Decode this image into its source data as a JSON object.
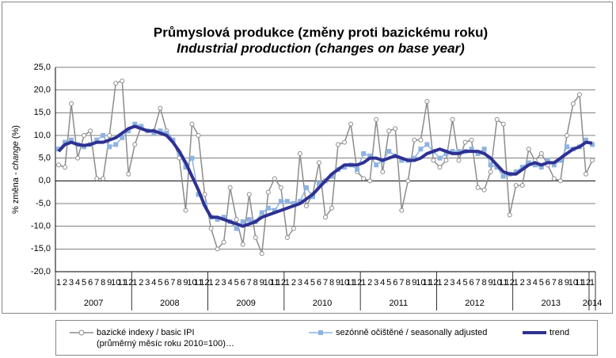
{
  "chart_data": {
    "type": "line",
    "title": "Průmyslová produkce (změny proti bazickému roku)",
    "subtitle": "Industrial production  (changes on base year)",
    "y_label": [
      "% změna - ",
      "change",
      " (%)"
    ],
    "categories": [
      "1",
      "2",
      "3",
      "4",
      "5",
      "6",
      "7",
      "8",
      "9",
      "10",
      "11",
      "12",
      "1",
      "2",
      "3",
      "4",
      "5",
      "6",
      "7",
      "8",
      "9",
      "10",
      "11",
      "12",
      "1",
      "2",
      "3",
      "4",
      "5",
      "6",
      "7",
      "8",
      "9",
      "10",
      "11",
      "12",
      "1",
      "2",
      "3",
      "4",
      "5",
      "6",
      "7",
      "8",
      "9",
      "10",
      "11",
      "12",
      "1",
      "2",
      "3",
      "4",
      "5",
      "6",
      "7",
      "8",
      "9",
      "10",
      "11",
      "12",
      "1",
      "2",
      "3",
      "4",
      "5",
      "6",
      "7",
      "8",
      "9",
      "10",
      "11",
      "12",
      "1",
      "2",
      "3",
      "4",
      "5",
      "6",
      "7",
      "8",
      "9",
      "10",
      "11",
      "12",
      "1"
    ],
    "years": [
      "2007",
      "2008",
      "2009",
      "2010",
      "2011",
      "2012",
      "2013",
      "2014"
    ],
    "ylim": [
      -20,
      25
    ],
    "yticks": [
      {
        "value": -20,
        "label": "-20,0"
      },
      {
        "value": -15,
        "label": "-15,0"
      },
      {
        "value": -10,
        "label": "-10,0"
      },
      {
        "value": -5,
        "label": "-5,0"
      },
      {
        "value": 0,
        "label": "0,0"
      },
      {
        "value": 5,
        "label": "5,0"
      },
      {
        "value": 10,
        "label": "10,0"
      },
      {
        "value": 15,
        "label": "15,0"
      },
      {
        "value": 20,
        "label": "20,0"
      },
      {
        "value": 25,
        "label": "25,0"
      }
    ],
    "grid": true,
    "legend": "bottom",
    "series": [
      {
        "name": "bazické indexy / basic IPI\n(průměrný měsíc roku 2010=100)…",
        "color": "#8c8c8c",
        "marker": "circle",
        "values": [
          3.5,
          3,
          17,
          5,
          10,
          11,
          0.5,
          0.5,
          10,
          21.5,
          22,
          1.5,
          8,
          12,
          11,
          11,
          16,
          11,
          9,
          5,
          -6.5,
          12.5,
          10,
          -3,
          -10.5,
          -15,
          -13.5,
          -1.5,
          -8.5,
          -14,
          -3,
          -12.5,
          -16,
          -2.5,
          0.5,
          -1.5,
          -12.5,
          -10.5,
          6,
          -5.5,
          -3,
          4,
          -8,
          -6,
          8,
          8.5,
          12.5,
          2,
          0.5,
          0,
          13.5,
          2,
          11,
          11.5,
          -6.5,
          0,
          9,
          9,
          17.5,
          4.5,
          3,
          4.5,
          13.5,
          4.5,
          8.5,
          9,
          -1.5,
          -2,
          2,
          13.5,
          12.5,
          -7.5,
          -1,
          -1,
          7,
          4.5,
          6,
          3.5,
          0.5,
          0,
          10,
          17,
          19,
          1.5,
          4.5
        ]
      },
      {
        "name": "sezónně očištěné / seasonally adjusted",
        "color": "#8db3e2",
        "marker": "square",
        "values": [
          7,
          8.5,
          9,
          8,
          7.5,
          8,
          9,
          10,
          7.5,
          8,
          9.5,
          11,
          12.5,
          12,
          11,
          10.5,
          11,
          10.5,
          9,
          6,
          3,
          5,
          -3,
          -5,
          -8,
          -8.5,
          -8,
          -9,
          -10.5,
          -9,
          -8.5,
          -9,
          -7,
          -6,
          -6.5,
          -4.5,
          -4.5,
          -5,
          -4.5,
          -1.5,
          -3.5,
          -0.5,
          0,
          1,
          2.5,
          3,
          3.5,
          2.5,
          6,
          5.5,
          3.5,
          4.5,
          6.5,
          5.5,
          4.5,
          4.5,
          5,
          7,
          8,
          6.5,
          5,
          6,
          6.5,
          6.5,
          6.5,
          7,
          6,
          7,
          3.5,
          3,
          1,
          1.5,
          2,
          3,
          4,
          3.5,
          3,
          4.5,
          3.5,
          4.5,
          7.5,
          7,
          7.5,
          9,
          8
        ]
      },
      {
        "name": "trend",
        "color": "#2e3192",
        "marker": "none",
        "values": [
          6.5,
          8,
          8.5,
          8,
          7.8,
          8,
          8.5,
          8.5,
          9,
          9.5,
          10.5,
          11.5,
          12,
          11.5,
          11,
          11,
          10.5,
          10,
          8.5,
          6.5,
          4,
          1,
          -2,
          -5.5,
          -8,
          -8,
          -8.5,
          -9,
          -9.5,
          -10,
          -9.5,
          -9,
          -8,
          -7.5,
          -7,
          -6.5,
          -6,
          -5.5,
          -5,
          -4,
          -3,
          -1.5,
          0,
          1.5,
          2.5,
          3.5,
          3.5,
          3.5,
          4,
          5,
          5,
          4.5,
          5,
          5.5,
          5,
          4.5,
          4.5,
          5,
          6,
          6.5,
          7,
          6.5,
          6,
          6,
          6.5,
          6.5,
          6.5,
          6,
          5,
          3.5,
          2,
          1.5,
          1.5,
          2.5,
          3.5,
          4,
          3.5,
          4,
          4,
          5,
          6,
          7,
          7.5,
          8.5,
          8.3
        ]
      }
    ]
  }
}
